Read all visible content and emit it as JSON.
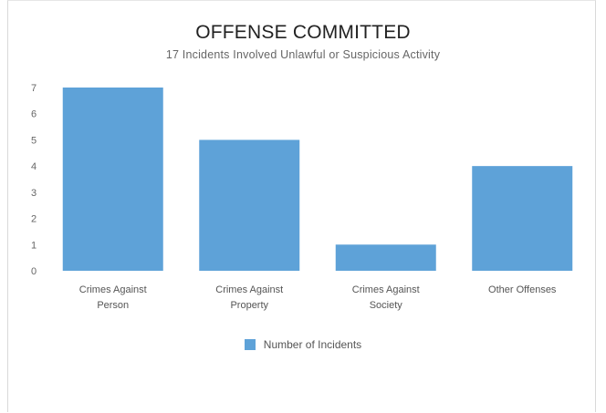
{
  "chart_data": {
    "type": "bar",
    "title": "OFFENSE COMMITTED",
    "subtitle": "17 Incidents Involved Unlawful or Suspicious Activity",
    "categories": [
      [
        "Crimes Against",
        "Person"
      ],
      [
        "Crimes Against",
        "Property"
      ],
      [
        "Crimes Against",
        "Society"
      ],
      [
        "Other Offenses"
      ]
    ],
    "series": [
      {
        "name": "Number of Incidents",
        "values": [
          7,
          5,
          1,
          4
        ],
        "color": "#5ea2d8"
      }
    ],
    "ylim": [
      0,
      7
    ],
    "yticks": [
      "0",
      "1",
      "2",
      "3",
      "4",
      "5",
      "6",
      "7"
    ],
    "xlabel": "",
    "ylabel": "",
    "grid": false,
    "legend_position": "bottom"
  }
}
